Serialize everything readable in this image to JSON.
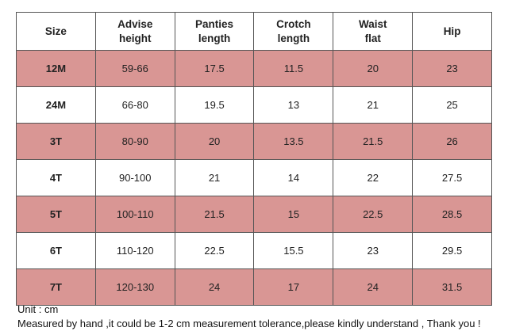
{
  "table": {
    "header": [
      "Size",
      "Advise\nheight",
      "Panties\nlength",
      "Crotch\nlength",
      "Waist\nflat",
      "Hip"
    ],
    "rows": [
      [
        "12M",
        "59-66",
        "17.5",
        "11.5",
        "20",
        "23"
      ],
      [
        "24M",
        "66-80",
        "19.5",
        "13",
        "21",
        "25"
      ],
      [
        "3T",
        "80-90",
        "20",
        "13.5",
        "21.5",
        "26"
      ],
      [
        "4T",
        "90-100",
        "21",
        "14",
        "22",
        "27.5"
      ],
      [
        "5T",
        "100-110",
        "21.5",
        "15",
        "22.5",
        "28.5"
      ],
      [
        "6T",
        "110-120",
        "22.5",
        "15.5",
        "23",
        "29.5"
      ],
      [
        "7T",
        "120-130",
        "24",
        "17",
        "24",
        "31.5"
      ]
    ]
  },
  "notes": [
    "Unit : cm",
    "Measured by hand ,it could be 1-2 cm measurement tolerance,please kindly understand , Thank you !"
  ]
}
